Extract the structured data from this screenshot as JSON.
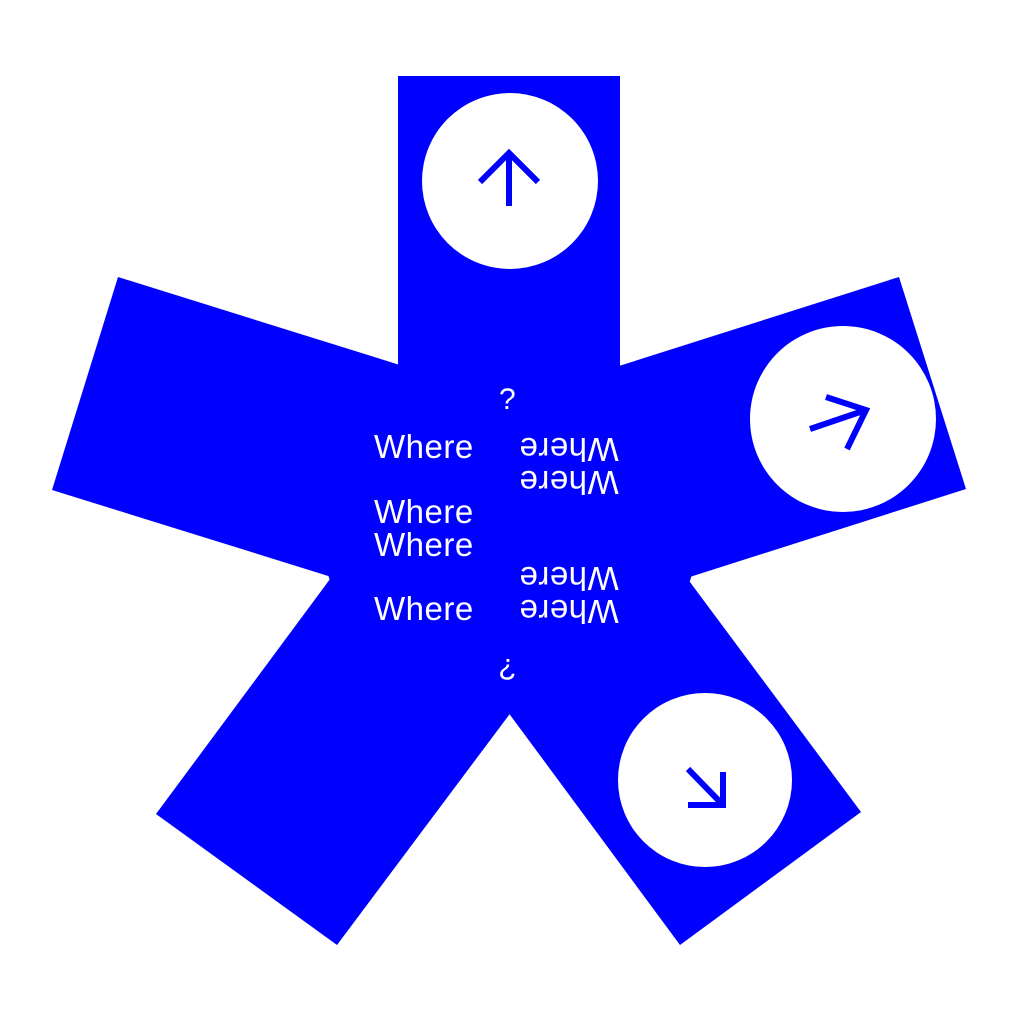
{
  "colors": {
    "background": "#ffffff",
    "shape": "#0000ff",
    "circle": "#ffffff",
    "arrow": "#0000ff",
    "text": "#ffffff"
  },
  "poster": {
    "question_top": "?",
    "question_bottom": "?",
    "words": {
      "left_1": "Where",
      "left_2": "Where",
      "left_3": "Where",
      "left_4": "Where",
      "right_1": "Where",
      "right_2": "Where",
      "right_3": "Where",
      "right_4": "Where"
    },
    "icons": {
      "top": "arrow-up-icon",
      "right": "arrow-up-right-icon",
      "bottom_right": "arrow-down-right-icon"
    }
  }
}
